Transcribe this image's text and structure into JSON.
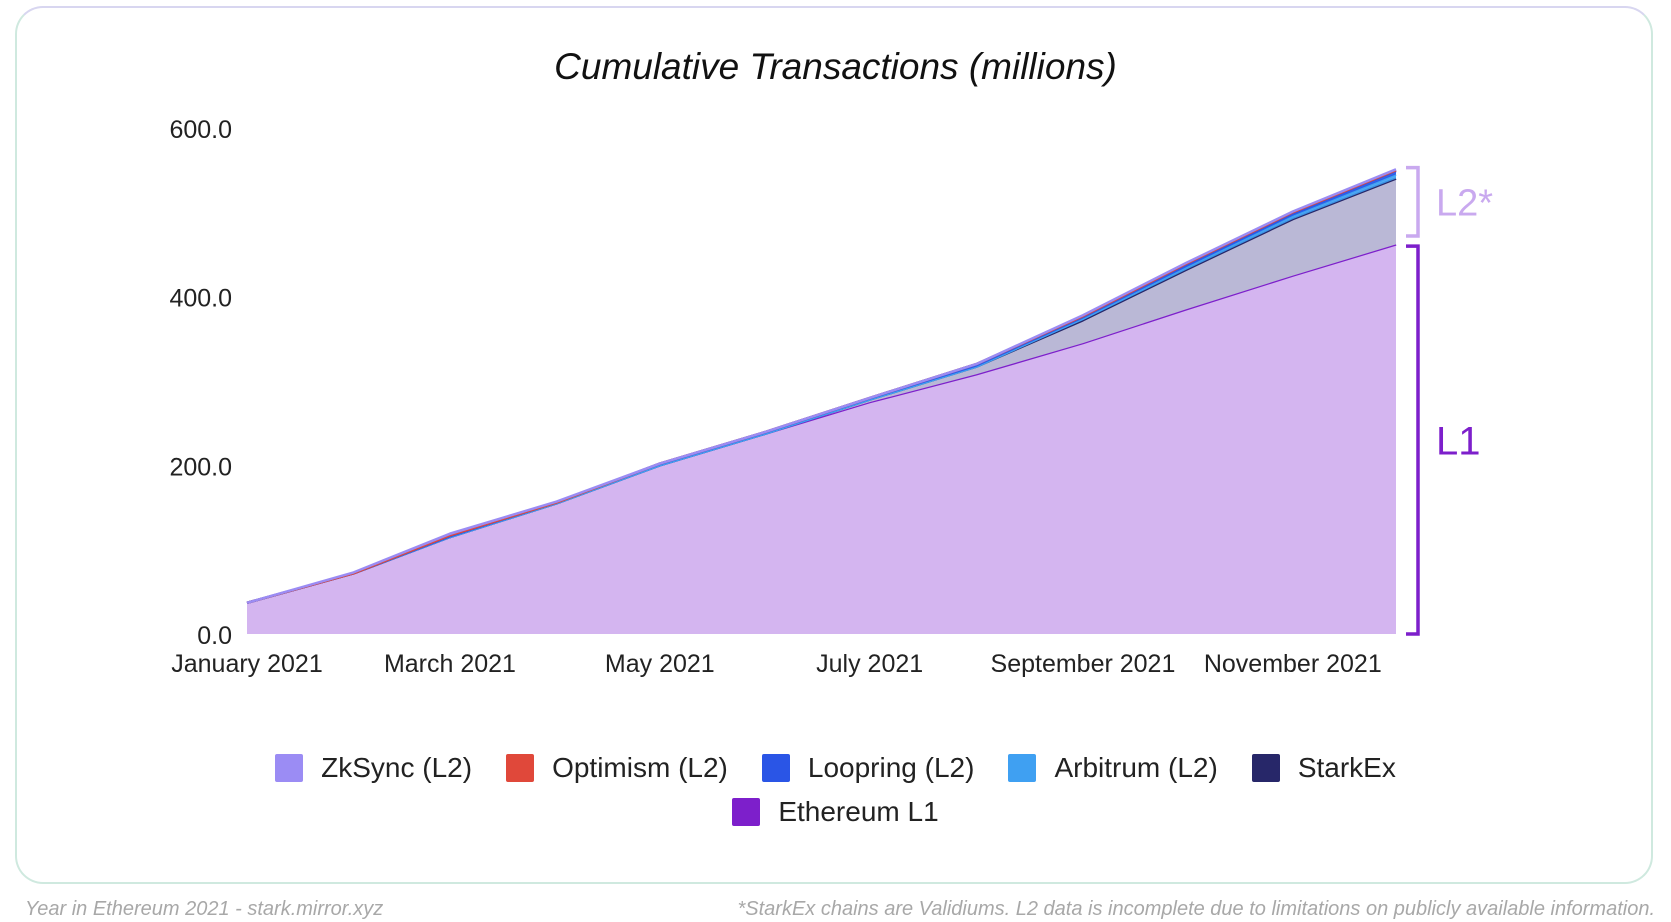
{
  "footer": {
    "left": "Year in Ethereum 2021 - stark.mirror.xyz",
    "right": "*StarkEx chains are Validiums. L2 data is incomplete due to limitations on publicly available information."
  },
  "brackets": {
    "l2_label": "L2*",
    "l1_label": "L1",
    "l2_color": "#c9a9ef",
    "l1_color": "#7d1fcb"
  },
  "chart_data": {
    "type": "area",
    "stacked": true,
    "title": "Cumulative Transactions (millions)",
    "xlabel": "",
    "ylabel": "",
    "ylim": [
      0,
      600
    ],
    "yticks": [
      "0.0",
      "200.0",
      "400.0",
      "600.0"
    ],
    "xticks": [
      "January 2021",
      "March 2021",
      "May 2021",
      "July 2021",
      "September 2021",
      "November 2021"
    ],
    "x": [
      "2021-01-01",
      "2021-02-01",
      "2021-03-01",
      "2021-04-01",
      "2021-05-01",
      "2021-06-01",
      "2021-07-01",
      "2021-08-01",
      "2021-09-01",
      "2021-10-01",
      "2021-11-01",
      "2021-12-01"
    ],
    "grid": false,
    "legend": "bottom",
    "series": [
      {
        "name": "Ethereum L1",
        "color": "#7d1fcb",
        "fill": "#d4b5f0",
        "values": [
          37,
          72,
          115,
          155,
          200,
          238,
          275,
          308,
          345,
          385,
          425,
          462
        ]
      },
      {
        "name": "StarkEx",
        "color": "#272769",
        "fill": "#bab8d6",
        "values": [
          0,
          0,
          0,
          0,
          0,
          0,
          3,
          9,
          27,
          47,
          67,
          78
        ]
      },
      {
        "name": "Arbitrum (L2)",
        "color": "#3fa0f2",
        "values": [
          0,
          0,
          0,
          0,
          0,
          0,
          0,
          0,
          2,
          3,
          4,
          5
        ]
      },
      {
        "name": "Loopring (L2)",
        "color": "#2a55e6",
        "values": [
          0,
          0,
          1,
          1,
          2,
          2,
          2,
          3,
          3,
          3,
          3,
          4
        ]
      },
      {
        "name": "Optimism (L2)",
        "color": "#e0483a",
        "values": [
          0,
          0,
          1,
          0,
          0,
          0,
          0,
          0,
          0,
          1,
          1,
          1
        ]
      },
      {
        "name": "ZkSync (L2)",
        "color": "#9b8cf4",
        "values": [
          0,
          1,
          2,
          1,
          0,
          0,
          0,
          0,
          1,
          1,
          1,
          1
        ]
      }
    ],
    "legend_order": [
      "ZkSync (L2)",
      "Optimism (L2)",
      "Loopring (L2)",
      "Arbitrum (L2)",
      "StarkEx",
      "Ethereum L1"
    ]
  }
}
